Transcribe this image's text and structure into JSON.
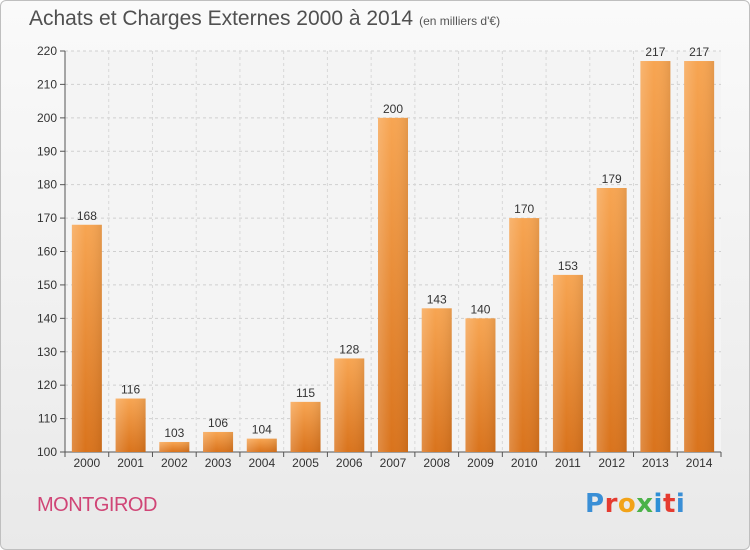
{
  "header": {
    "title": "Achats et Charges Externes 2000 à 2014",
    "subtitle": "(en milliers d'€)"
  },
  "footer": {
    "commune": "MONTGIROD",
    "logo_text": "Proxiti",
    "logo_colors": [
      "#3a8fd6",
      "#e53b30",
      "#f2a318",
      "#4bb249",
      "#2e8fd6",
      "#e53b30",
      "#3a8fd6"
    ]
  },
  "chart_data": {
    "type": "bar",
    "categories": [
      "2000",
      "2001",
      "2002",
      "2003",
      "2004",
      "2005",
      "2006",
      "2007",
      "2008",
      "2009",
      "2010",
      "2011",
      "2012",
      "2013",
      "2014"
    ],
    "values": [
      168,
      116,
      103,
      106,
      104,
      115,
      128,
      200,
      143,
      140,
      170,
      153,
      179,
      217,
      217
    ],
    "ylim": [
      100,
      220
    ],
    "yticks": [
      100,
      110,
      120,
      130,
      140,
      150,
      160,
      170,
      180,
      190,
      200,
      210,
      220
    ],
    "grid": true,
    "bar_color": "#e88a2e"
  }
}
